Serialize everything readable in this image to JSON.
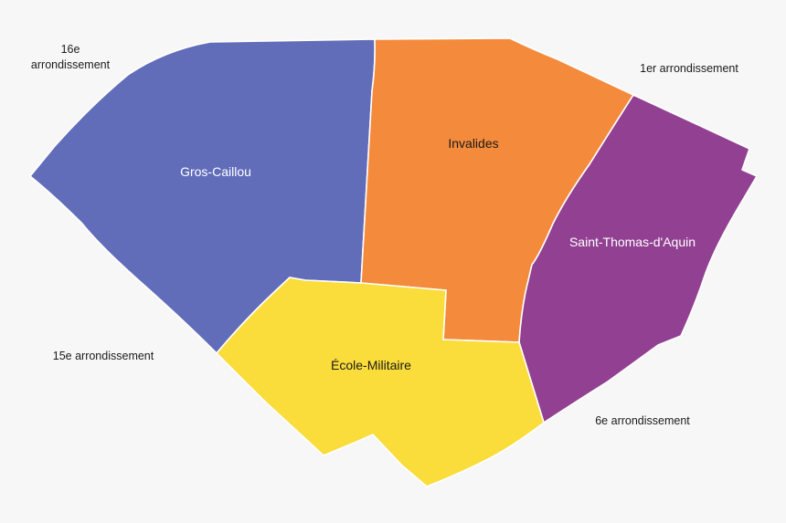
{
  "map": {
    "districts": [
      {
        "id": "gros-caillou",
        "name": "Gros-Caillou",
        "fill": "#626dba",
        "label_color": "#ffffff"
      },
      {
        "id": "invalides",
        "name": "Invalides",
        "fill": "#f48a3b",
        "label_color": "#1a1a1a"
      },
      {
        "id": "saint-thomas-daquin",
        "name": "Saint-Thomas-d'Aquin",
        "fill": "#924192",
        "label_color": "#ffffff"
      },
      {
        "id": "ecole-militaire",
        "name": "École-Militaire",
        "fill": "#fadc3a",
        "label_color": "#1a1a1a"
      }
    ],
    "neighbors": {
      "north_west_line1": "16e",
      "north_west_line2": "arrondissement",
      "north_east": "1er arrondissement",
      "south_west": "15e arrondissement",
      "south_east": "6e arrondissement"
    },
    "background": "#f7f7f8"
  }
}
